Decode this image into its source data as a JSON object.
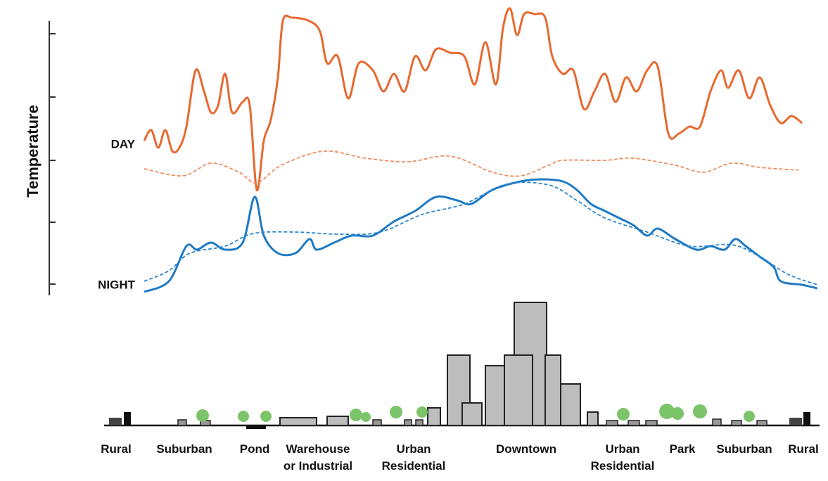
{
  "chart_data": {
    "type": "line",
    "y_label": "Temperature",
    "xlim": [
      0,
      95.7
    ],
    "ylim": [
      0,
      39
    ],
    "yticks": [
      1.6,
      10.4,
      19.2,
      28.2,
      37.2
    ],
    "annotations": [
      {
        "text": "DAY",
        "y": 21
      },
      {
        "text": "NIGHT",
        "y": 1
      }
    ],
    "series": [
      {
        "color": "#e8692f",
        "dashed": false,
        "x": [
          0,
          1,
          2,
          3,
          4,
          5,
          6,
          7.3,
          8.5,
          9.5,
          10.5,
          11.5,
          12.5,
          14,
          15,
          16,
          17,
          18,
          19,
          19.7,
          21,
          23.5,
          25,
          26,
          27.5,
          29,
          30.5,
          32.5,
          34,
          35.5,
          37,
          38.5,
          40,
          41.5,
          43.5,
          45.5,
          47,
          48.5,
          50,
          51,
          52,
          53,
          54,
          55.5,
          57,
          58,
          59.5,
          61,
          62.5,
          64,
          65.5,
          67,
          68.5,
          70,
          71.5,
          73,
          74.5,
          76,
          77.5,
          79,
          80.5,
          82,
          83,
          84.5,
          86,
          87.5,
          89,
          90.5,
          92,
          93.5
        ],
        "values": [
          22,
          23.5,
          21,
          23.5,
          20.5,
          21,
          24,
          32,
          29,
          26,
          27,
          31.5,
          26,
          27.5,
          27,
          15,
          22,
          25,
          31,
          39,
          39.5,
          39,
          37.5,
          33,
          34,
          28,
          33,
          32,
          29,
          31.5,
          29,
          34,
          32,
          35,
          34.5,
          34,
          30,
          36,
          30,
          38,
          40.8,
          37,
          40,
          40,
          39.5,
          34,
          31.5,
          32,
          26.5,
          29,
          31.5,
          27.5,
          31,
          29,
          32,
          32.5,
          23,
          23,
          24,
          24,
          29,
          32,
          29.5,
          32,
          28,
          31,
          27,
          24.5,
          25.5,
          24.5
        ]
      },
      {
        "color": "#f08a5d",
        "dashed": true,
        "x": [
          0,
          5.5,
          9.5,
          13.5,
          16,
          19.5,
          25.5,
          31.5,
          37.5,
          43.5,
          49.5,
          53.5,
          57.5,
          59.5,
          65.5,
          69.5,
          75.5,
          79.5,
          83.5,
          87.5,
          93
        ],
        "values": [
          18,
          17,
          18.8,
          17.5,
          16,
          18.5,
          20.5,
          19.5,
          19,
          19.8,
          17.5,
          17,
          18.5,
          19.2,
          19.2,
          19.5,
          18.5,
          17.5,
          18.8,
          18.2,
          17.8
        ]
      },
      {
        "color": "#1f7ac4",
        "dashed": false,
        "x": [
          0,
          3.5,
          6,
          7.5,
          9.5,
          11.5,
          14,
          15.7,
          17,
          19,
          21.5,
          23.5,
          24.5,
          27,
          29.5,
          32.5,
          35.5,
          38.5,
          41.5,
          44.5,
          46.5,
          49.5,
          53.5,
          56.5,
          59.5,
          61.5,
          63.5,
          65.5,
          67.5,
          69.5,
          71.5,
          73,
          75.5,
          78.5,
          80.5,
          82.5,
          84,
          85.5,
          87.5,
          89.5,
          90.5,
          93.5,
          95.7
        ],
        "values": [
          0.5,
          2,
          7,
          6.5,
          7.5,
          6.5,
          7.5,
          14,
          8.5,
          6,
          6,
          8,
          6.5,
          7.5,
          8.5,
          8.5,
          10.5,
          12,
          14,
          13.5,
          13,
          15,
          16.2,
          16.5,
          16.2,
          15,
          13,
          12,
          11,
          10,
          8.5,
          9.5,
          8,
          6.5,
          7,
          6.5,
          8,
          7,
          5.5,
          4,
          2,
          1.5,
          1
        ]
      },
      {
        "color": "#2a86cf",
        "dashed": true,
        "x": [
          0,
          3.5,
          6.5,
          11.5,
          15.5,
          21.5,
          27.5,
          33.5,
          39.5,
          45.5,
          51.5,
          57.5,
          61.5,
          65.5,
          71.5,
          77.5,
          83.5,
          87.5,
          91.5,
          95.7
        ],
        "values": [
          2,
          3.5,
          6,
          7,
          8.8,
          9,
          8.7,
          9,
          11.5,
          13,
          15.8,
          15.7,
          13.5,
          11,
          9,
          7,
          7.2,
          5.5,
          3,
          1.5
        ]
      }
    ],
    "zones": [
      {
        "lines": [
          "Rural"
        ]
      },
      {
        "lines": [
          "Suburban"
        ]
      },
      {
        "lines": [
          "Pond"
        ]
      },
      {
        "lines": [
          "Warehouse",
          "or Industrial"
        ]
      },
      {
        "lines": [
          "Urban",
          "Residential"
        ]
      },
      {
        "lines": [
          "Downtown"
        ]
      },
      {
        "lines": [
          "Urban",
          "Residential"
        ]
      },
      {
        "lines": [
          "Park"
        ]
      },
      {
        "lines": [
          "Suburban"
        ]
      },
      {
        "lines": [
          "Rural"
        ]
      }
    ]
  }
}
